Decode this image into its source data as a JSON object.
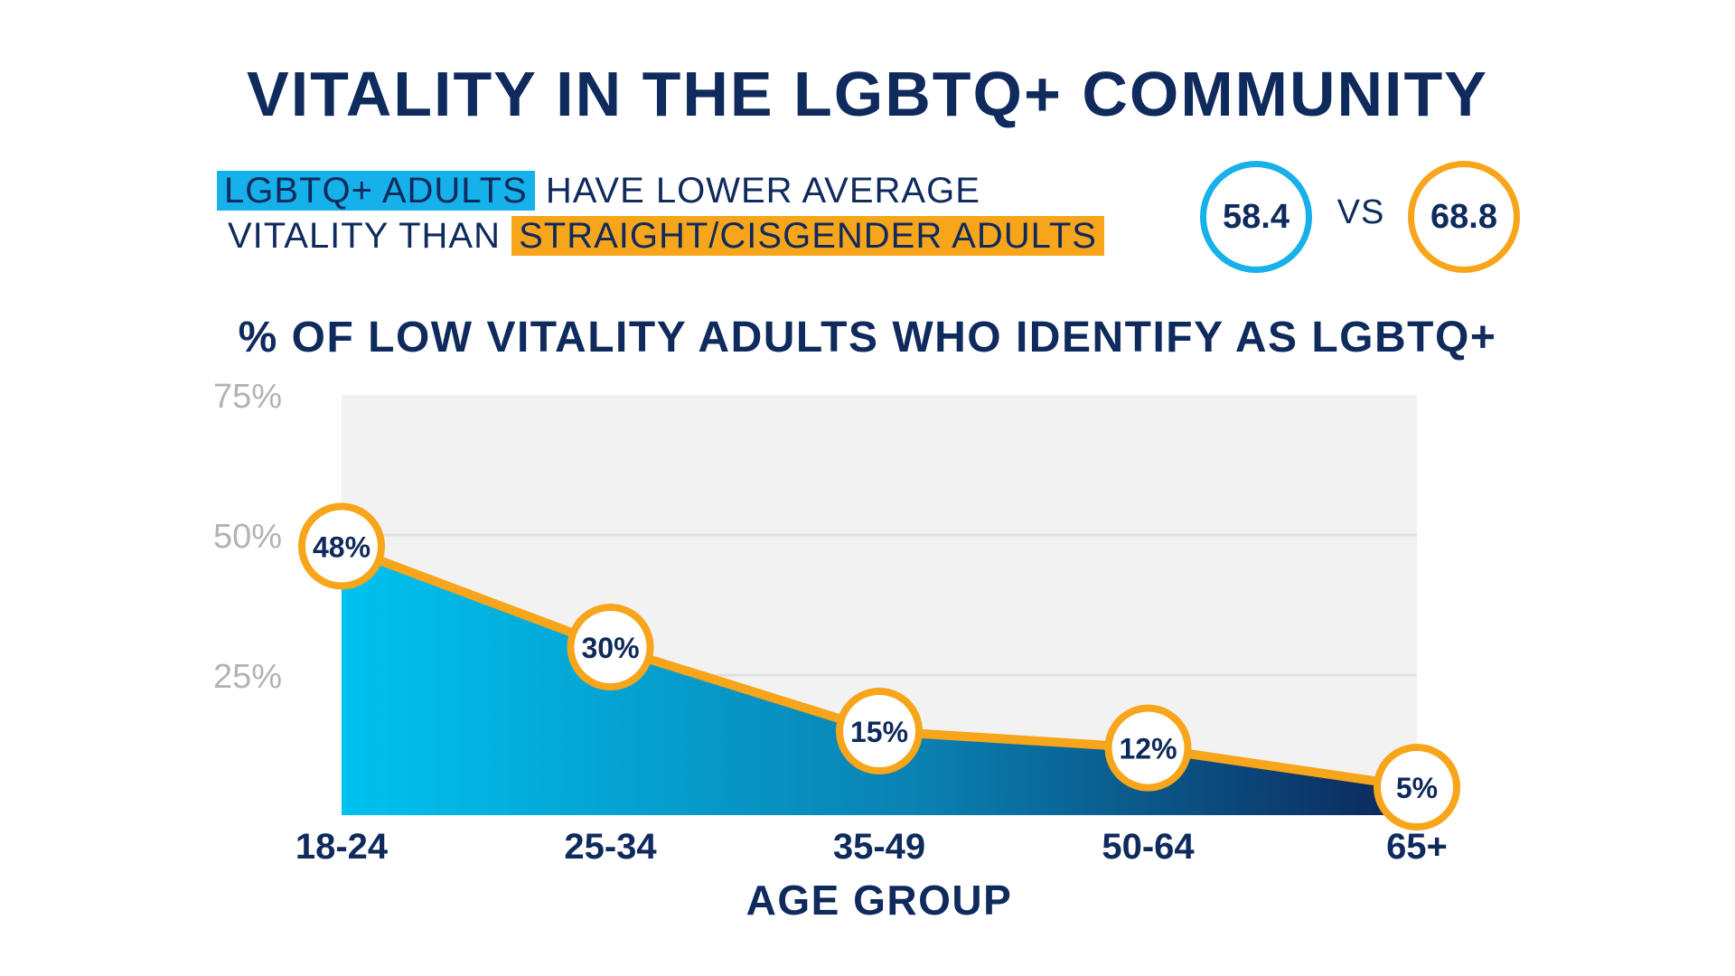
{
  "title": "VITALITY IN THE LGBTQ+ COMMUNITY",
  "headline": {
    "part1": "LGBTQ+ ADULTS",
    "part2": " HAVE LOWER AVERAGE",
    "part3": "VITALITY THAN ",
    "part4": "STRAIGHT/CISGENDER ADULTS"
  },
  "comparison": {
    "lgbtq_value": "58.4",
    "vs_label": "VS",
    "straight_value": "68.8"
  },
  "colors": {
    "navy": "#0f2a5c",
    "blue": "#16b0ea",
    "orange": "#f7a51b",
    "plot_bg": "#f2f2f2",
    "grid": "#e0e0e0",
    "tick": "#b3b3b3"
  },
  "chart_data": {
    "type": "area",
    "title": "% OF LOW VITALITY ADULTS WHO IDENTIFY AS LGBTQ+",
    "xlabel": "AGE GROUP",
    "ylabel": "",
    "categories": [
      "18-24",
      "25-34",
      "35-49",
      "50-64",
      "65+"
    ],
    "values": [
      48,
      30,
      15,
      12,
      5
    ],
    "data_labels": [
      "48%",
      "30%",
      "15%",
      "12%",
      "5%"
    ],
    "ylim": [
      0,
      75
    ],
    "yticks": [
      25,
      50,
      75
    ],
    "ytick_labels": [
      "25%",
      "50%",
      "75%"
    ],
    "grid": true,
    "legend": "none"
  }
}
